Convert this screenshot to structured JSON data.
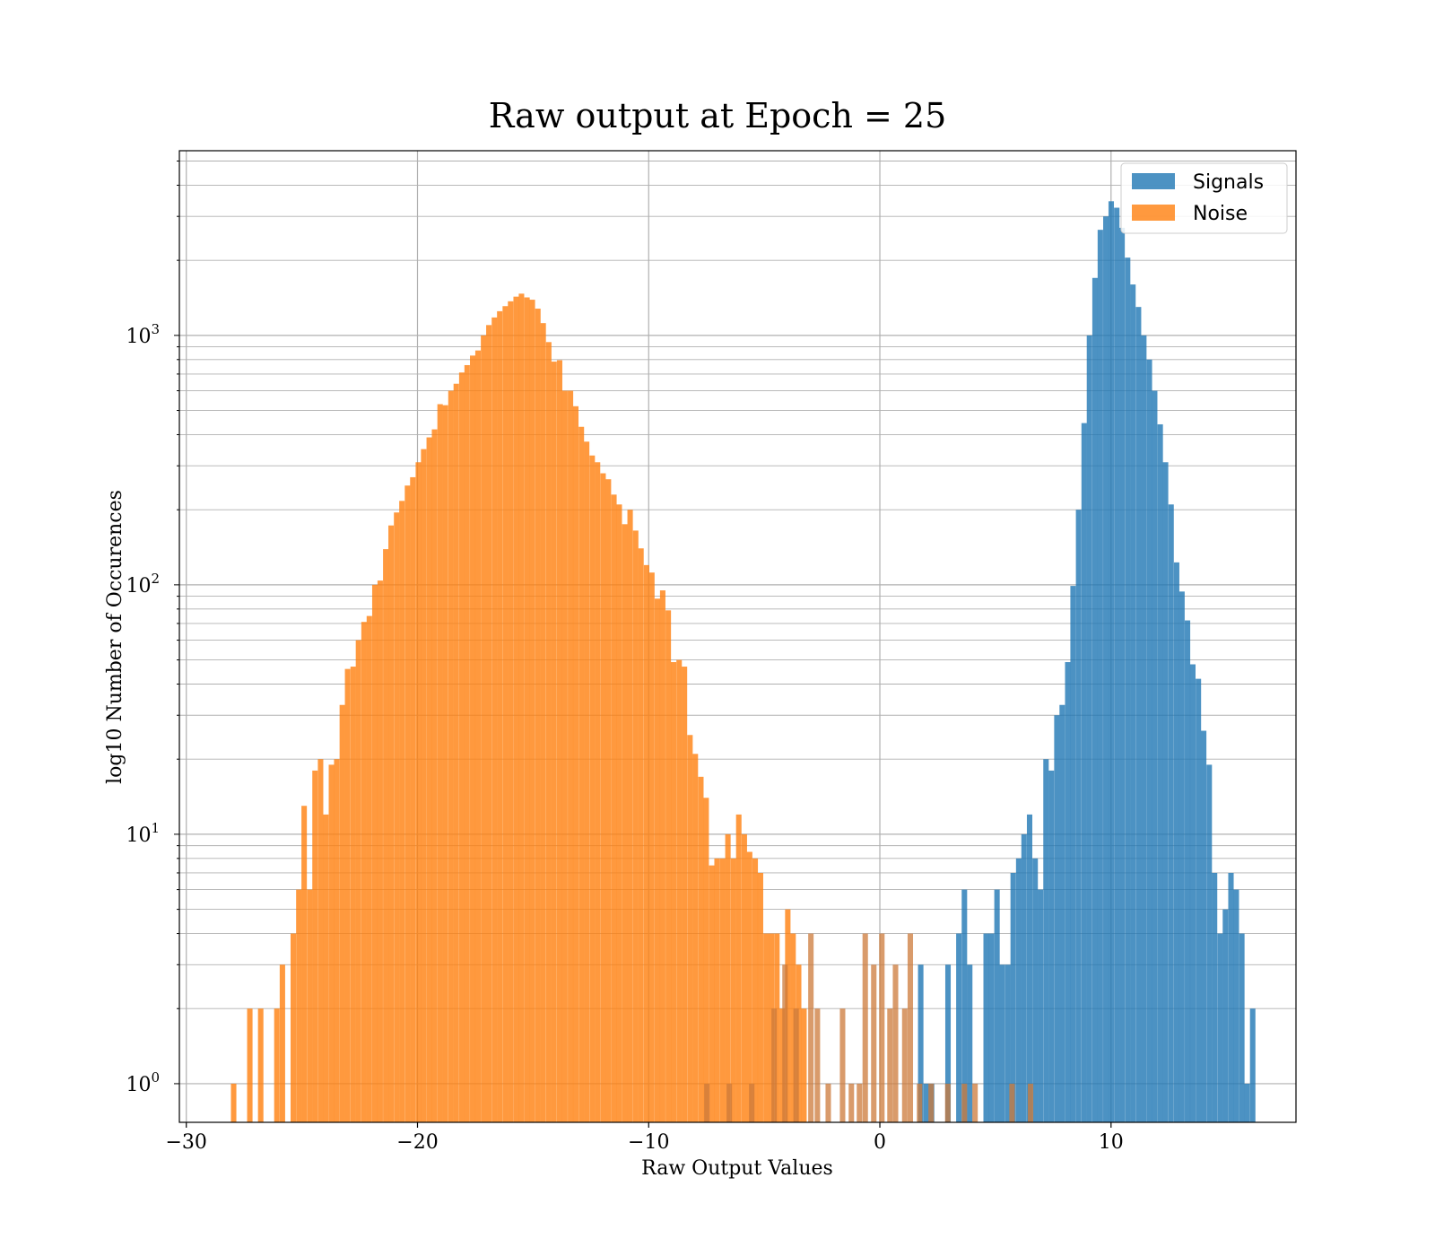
{
  "chart_data": {
    "type": "bar",
    "title": "Raw output at Epoch = 25",
    "xlabel": "Raw Output Values",
    "ylabel": "log10 Number of Occurences",
    "xlim": [
      -30.3,
      18.0
    ],
    "ylim": [
      0.7,
      5500
    ],
    "yscale": "log",
    "grid": true,
    "legend_position": "top-right",
    "x_ticks": [
      -30,
      -20,
      -10,
      0,
      10
    ],
    "x_tick_labels": [
      "−30",
      "−20",
      "−10",
      "0",
      "10"
    ],
    "y_ticks": [
      1,
      10,
      100,
      1000
    ],
    "y_tick_labels": [
      {
        "base": "10",
        "exp": "0"
      },
      {
        "base": "10",
        "exp": "1"
      },
      {
        "base": "10",
        "exp": "2"
      },
      {
        "base": "10",
        "exp": "3"
      }
    ],
    "bin_width": 0.235,
    "series": [
      {
        "name": "Signals",
        "color": "#1f77b4",
        "bins": [
          [
            1.65,
            3
          ],
          [
            1.89,
            1
          ],
          [
            2.12,
            1
          ],
          [
            2.83,
            3
          ],
          [
            3.3,
            4
          ],
          [
            3.54,
            6
          ],
          [
            3.77,
            3
          ],
          [
            4.48,
            4
          ],
          [
            4.71,
            4
          ],
          [
            4.95,
            6
          ],
          [
            5.18,
            3
          ],
          [
            5.42,
            3
          ],
          [
            5.65,
            7
          ],
          [
            5.89,
            8
          ],
          [
            6.12,
            10
          ],
          [
            6.36,
            12
          ],
          [
            6.6,
            8
          ],
          [
            6.83,
            6
          ],
          [
            7.07,
            20
          ],
          [
            7.3,
            18
          ],
          [
            7.54,
            30
          ],
          [
            7.77,
            33
          ],
          [
            8.01,
            49
          ],
          [
            8.24,
            99
          ],
          [
            8.48,
            200
          ],
          [
            8.72,
            445
          ],
          [
            8.95,
            1000
          ],
          [
            9.19,
            1700
          ],
          [
            9.42,
            2650
          ],
          [
            9.66,
            3000
          ],
          [
            9.89,
            3450
          ],
          [
            10.13,
            3250
          ],
          [
            10.36,
            2700
          ],
          [
            10.6,
            2050
          ],
          [
            10.83,
            1600
          ],
          [
            11.07,
            1300
          ],
          [
            11.3,
            1000
          ],
          [
            11.54,
            800
          ],
          [
            11.77,
            600
          ],
          [
            12.01,
            440
          ],
          [
            12.24,
            310
          ],
          [
            12.48,
            210
          ],
          [
            12.72,
            123
          ],
          [
            12.95,
            94
          ],
          [
            13.19,
            72
          ],
          [
            13.42,
            48
          ],
          [
            13.66,
            42
          ],
          [
            13.89,
            26
          ],
          [
            14.13,
            19
          ],
          [
            14.36,
            7
          ],
          [
            14.6,
            4
          ],
          [
            14.83,
            5
          ],
          [
            15.07,
            7
          ],
          [
            15.3,
            6
          ],
          [
            15.54,
            4
          ],
          [
            15.77,
            1
          ],
          [
            16.01,
            2
          ]
        ]
      },
      {
        "name": "Noise",
        "color": "#ff7f0e",
        "bins": [
          [
            -28.07,
            1
          ],
          [
            -27.37,
            2
          ],
          [
            -26.9,
            2
          ],
          [
            -26.2,
            2
          ],
          [
            -25.96,
            3
          ],
          [
            -25.49,
            4
          ],
          [
            -25.25,
            6
          ],
          [
            -25.02,
            13
          ],
          [
            -24.78,
            6
          ],
          [
            -24.55,
            18
          ],
          [
            -24.31,
            20
          ],
          [
            -24.08,
            12
          ],
          [
            -23.84,
            19
          ],
          [
            -23.61,
            20
          ],
          [
            -23.37,
            33
          ],
          [
            -23.14,
            46
          ],
          [
            -22.9,
            47
          ],
          [
            -22.67,
            60
          ],
          [
            -22.43,
            71
          ],
          [
            -22.2,
            75
          ],
          [
            -21.96,
            100
          ],
          [
            -21.73,
            104
          ],
          [
            -21.49,
            139
          ],
          [
            -21.26,
            173
          ],
          [
            -21.02,
            195
          ],
          [
            -20.79,
            217
          ],
          [
            -20.55,
            250
          ],
          [
            -20.32,
            270
          ],
          [
            -20.08,
            310
          ],
          [
            -19.85,
            350
          ],
          [
            -19.61,
            390
          ],
          [
            -19.38,
            420
          ],
          [
            -19.14,
            530
          ],
          [
            -18.91,
            525
          ],
          [
            -18.67,
            600
          ],
          [
            -18.44,
            640
          ],
          [
            -18.2,
            710
          ],
          [
            -17.97,
            760
          ],
          [
            -17.73,
            830
          ],
          [
            -17.5,
            870
          ],
          [
            -17.26,
            1000
          ],
          [
            -17.03,
            1100
          ],
          [
            -16.79,
            1180
          ],
          [
            -16.56,
            1250
          ],
          [
            -16.32,
            1310
          ],
          [
            -16.09,
            1370
          ],
          [
            -15.85,
            1430
          ],
          [
            -15.62,
            1470
          ],
          [
            -15.38,
            1420
          ],
          [
            -15.15,
            1390
          ],
          [
            -14.91,
            1280
          ],
          [
            -14.68,
            1120
          ],
          [
            -14.44,
            940
          ],
          [
            -14.21,
            785
          ],
          [
            -13.97,
            795
          ],
          [
            -13.74,
            600
          ],
          [
            -13.5,
            600
          ],
          [
            -13.27,
            520
          ],
          [
            -13.03,
            430
          ],
          [
            -12.8,
            375
          ],
          [
            -12.56,
            330
          ],
          [
            -12.33,
            310
          ],
          [
            -12.09,
            280
          ],
          [
            -11.86,
            265
          ],
          [
            -11.62,
            230
          ],
          [
            -11.39,
            210
          ],
          [
            -11.15,
            175
          ],
          [
            -10.92,
            200
          ],
          [
            -10.68,
            165
          ],
          [
            -10.45,
            140
          ],
          [
            -10.21,
            120
          ],
          [
            -9.98,
            112
          ],
          [
            -9.74,
            88
          ],
          [
            -9.51,
            95
          ],
          [
            -9.27,
            79
          ],
          [
            -9.04,
            49
          ],
          [
            -8.8,
            50
          ],
          [
            -8.57,
            47
          ],
          [
            -8.33,
            25
          ],
          [
            -8.1,
            21
          ],
          [
            -7.86,
            17
          ],
          [
            -7.63,
            14
          ],
          [
            -7.39,
            7.5
          ],
          [
            -7.16,
            8
          ],
          [
            -6.92,
            8
          ],
          [
            -6.69,
            10
          ],
          [
            -6.45,
            8
          ],
          [
            -6.22,
            12
          ],
          [
            -5.98,
            10
          ],
          [
            -5.75,
            8.5
          ],
          [
            -5.51,
            8
          ],
          [
            -5.28,
            7
          ],
          [
            -5.04,
            4
          ],
          [
            -4.81,
            4
          ],
          [
            -4.57,
            4
          ],
          [
            -4.34,
            2
          ],
          [
            -4.1,
            5
          ],
          [
            -3.87,
            4
          ],
          [
            -3.63,
            3
          ],
          [
            -3.4,
            2
          ]
        ]
      },
      {
        "name": "",
        "color": "#cc7a3a",
        "bins": [
          [
            -7.6,
            1
          ],
          [
            -6.63,
            1
          ],
          [
            -5.66,
            1
          ],
          [
            -4.69,
            2
          ],
          [
            -4.22,
            3
          ],
          [
            -3.74,
            2
          ],
          [
            -3.1,
            4
          ],
          [
            -2.82,
            2
          ],
          [
            -2.35,
            1
          ],
          [
            -1.73,
            2
          ],
          [
            -1.35,
            1
          ],
          [
            -1.0,
            1
          ],
          [
            -0.75,
            4
          ],
          [
            -0.38,
            3
          ],
          [
            -0.03,
            4
          ],
          [
            0.32,
            2
          ],
          [
            0.56,
            3
          ],
          [
            0.96,
            2
          ],
          [
            1.2,
            4
          ],
          [
            1.6,
            1
          ],
          [
            2.1,
            1
          ],
          [
            2.82,
            1
          ],
          [
            3.54,
            1
          ],
          [
            4.0,
            1
          ],
          [
            5.6,
            1
          ],
          [
            6.4,
            1
          ]
        ]
      }
    ]
  }
}
